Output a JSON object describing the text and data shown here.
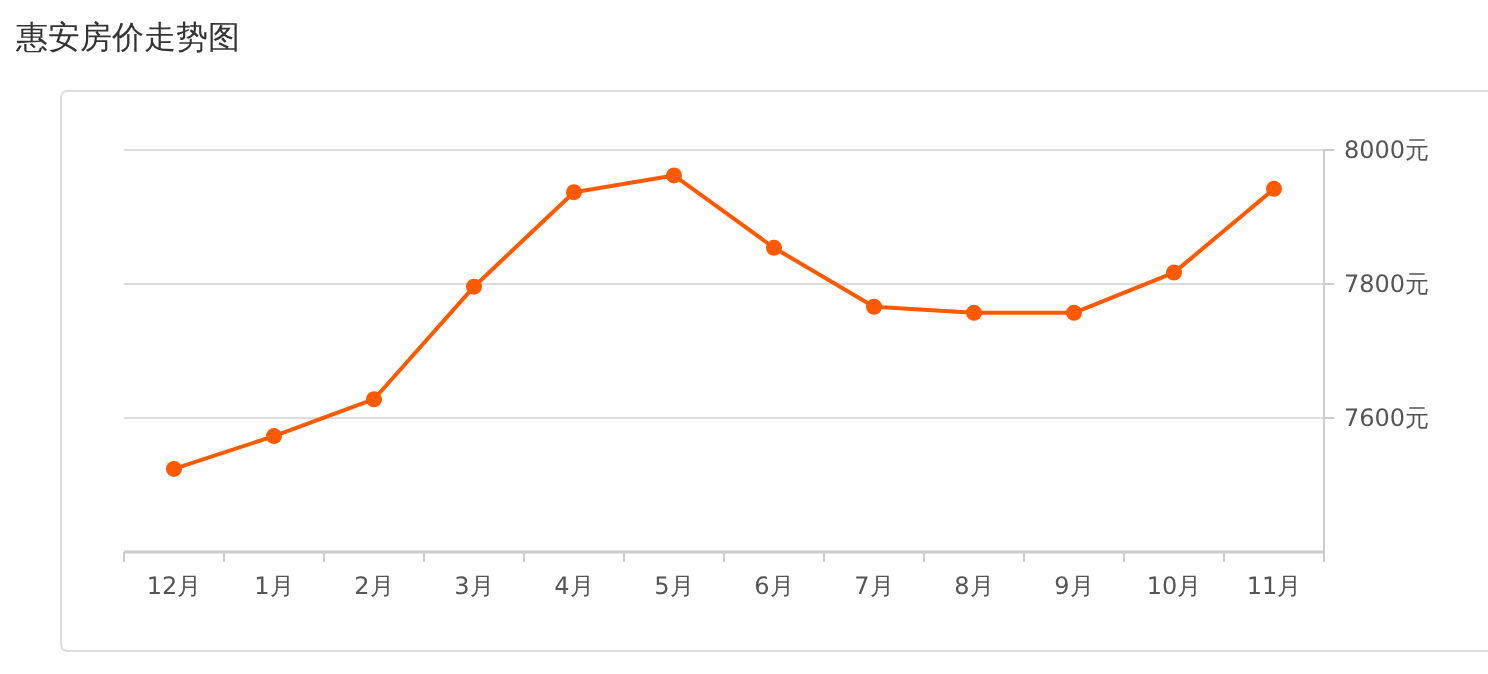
{
  "chart_data": {
    "type": "line",
    "title": "惠安房价走势图",
    "categories": [
      "12月",
      "1月",
      "2月",
      "3月",
      "4月",
      "5月",
      "6月",
      "7月",
      "8月",
      "9月",
      "10月",
      "11月"
    ],
    "series": [
      {
        "color": "#ff5a00",
        "values": [
          7524,
          7573,
          7628,
          7796,
          7937,
          7962,
          7854,
          7766,
          7757,
          7757,
          7817,
          7942
        ]
      }
    ],
    "ylim": [
      7400,
      8000
    ],
    "yticks": [
      {
        "value": 7600,
        "label": "7600元"
      },
      {
        "value": 7800,
        "label": "7800元"
      },
      {
        "value": 8000,
        "label": "8000元"
      }
    ],
    "grid": "y",
    "marker": "circle",
    "line_style": "solid"
  }
}
